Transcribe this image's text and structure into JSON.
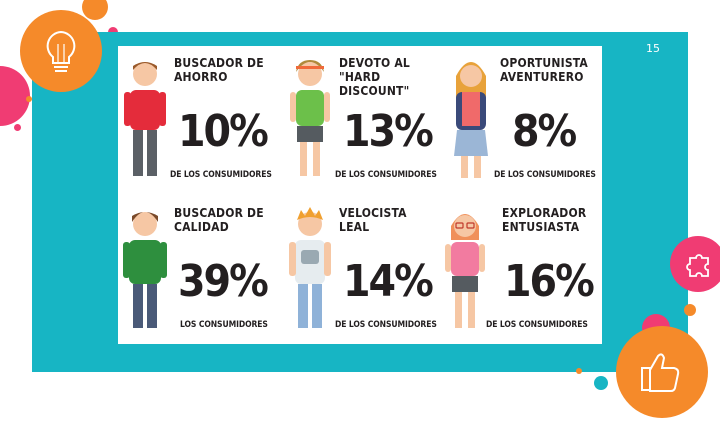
{
  "slide": {
    "number": "15"
  },
  "colors": {
    "teal": "#17b5c4",
    "orange": "#f58a2a",
    "pink": "#f03c73",
    "dark_text": "#231f20"
  },
  "decorations": {
    "top_left_icon": "lightbulb-icon",
    "right_icon": "puzzle-icon",
    "bottom_right_icon": "thumbs-up-icon"
  },
  "profiles": [
    {
      "title": "BUSCADOR DE\nAHORRO",
      "percent": "10%",
      "caption": "DE LOS CONSUMIDORES"
    },
    {
      "title": "DEVOTO AL\n\"HARD DISCOUNT\"",
      "percent": "13%",
      "caption": "DE LOS CONSUMIDORES"
    },
    {
      "title": "OPORTUNISTA\nAVENTURERO",
      "percent": "8%",
      "caption": "DE LOS CONSUMIDORES"
    },
    {
      "title": "BUSCADOR DE\nCALIDAD",
      "percent": "39%",
      "caption": "LOS CONSUMIDORES"
    },
    {
      "title": "VELOCISTA\nLEAL",
      "percent": "14%",
      "caption": "DE LOS CONSUMIDORES"
    },
    {
      "title": "EXPLORADOR\nENTUSIASTA",
      "percent": "16%",
      "caption": "DE LOS CONSUMIDORES"
    }
  ]
}
